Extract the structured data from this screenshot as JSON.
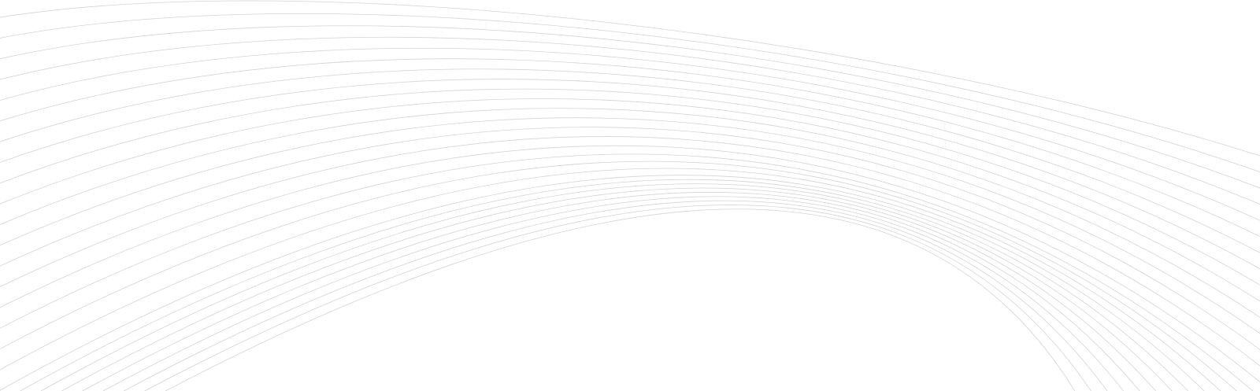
{
  "background": {
    "pattern": "curved-line-waves",
    "line_color": "#d4d4d4",
    "background_color": "#ffffff"
  }
}
